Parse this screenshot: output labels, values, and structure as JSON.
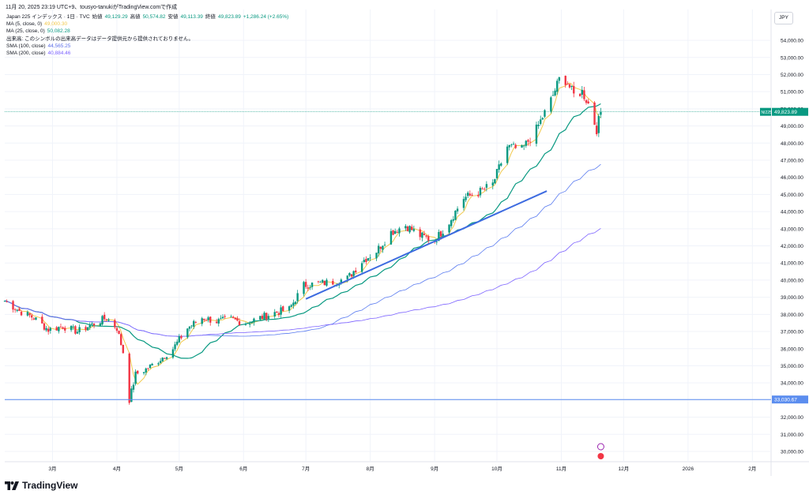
{
  "header": {
    "topline": "11月 20, 2025 23:19 UTC+9、tousyo-tanukiがTradingView.comで作成",
    "symbol": "Japan 225 インデックス · 1日 · TVC",
    "open_label": "始値",
    "open": "49,129.29",
    "high_label": "高値",
    "high": "50,574.82",
    "low_label": "安値",
    "low": "49,113.39",
    "close_label": "終値",
    "close": "49,823.89",
    "change": "+1,286.24 (+2.65%)"
  },
  "legend": [
    {
      "label": "MA (5, close, 0)",
      "value": "49,000.30",
      "color": "#f2c94c"
    },
    {
      "label": "MA (25, close, 0)",
      "value": "50,082.28",
      "color": "#089981"
    },
    {
      "label": "出来高: このシンボルの出来高データはデータ提供元から提供されておりません。",
      "value": "",
      "color": "#131722"
    },
    {
      "label": "SMA (100, close)",
      "value": "44,565.25",
      "color": "#5b6ee8"
    },
    {
      "label": "SMA (200, close)",
      "value": "40,884.46",
      "color": "#7b61ff"
    }
  ],
  "currency": "JPY",
  "brand": "TradingView",
  "colors": {
    "up": "#089981",
    "down": "#f23645",
    "ma5": "#f2c94c",
    "ma25": "#089981",
    "sma100": "#5b7cf0",
    "sma200": "#7b61ff",
    "trendline": "#3d6be0",
    "hline": "#5b8def",
    "price_tag": "#089981",
    "hline_tag": "#5b8def"
  },
  "chart_data": {
    "type": "candlestick",
    "y_axis": {
      "ylim": [
        29400,
        55800
      ],
      "ticks": [
        "54,000.00",
        "53,000.00",
        "52,000.00",
        "51,000.00",
        "50,000.00",
        "49,000.00",
        "48,000.00",
        "47,000.00",
        "46,000.00",
        "45,000.00",
        "44,000.00",
        "43,000.00",
        "42,000.00",
        "41,000.00",
        "40,000.00",
        "39,000.00",
        "38,000.00",
        "37,000.00",
        "36,000.00",
        "35,000.00",
        "34,000.00",
        "33,000.00",
        "32,000.00",
        "31,000.00",
        "30,000.00"
      ],
      "tick_values": [
        54000,
        53000,
        52000,
        51000,
        50000,
        49000,
        48000,
        47000,
        46000,
        45000,
        44000,
        43000,
        42000,
        41000,
        40000,
        39000,
        38000,
        37000,
        36000,
        35000,
        34000,
        33000,
        32000,
        31000,
        30000
      ]
    },
    "x_axis": {
      "ticks": [
        "3月",
        "4月",
        "5月",
        "6月",
        "7月",
        "8月",
        "9月",
        "10月",
        "11月",
        "12月",
        "2026",
        "2月"
      ],
      "tick_dates": [
        "2025-03-01",
        "2025-04-01",
        "2025-05-01",
        "2025-06-01",
        "2025-07-01",
        "2025-08-01",
        "2025-09-01",
        "2025-10-01",
        "2025-11-01",
        "2025-12-01",
        "2026-01-01",
        "2026-02-01"
      ],
      "xlim": [
        "2025-02-06",
        "2026-02-10"
      ]
    },
    "last_price": {
      "label": "NI225",
      "value": "49,823.89",
      "y": 49823.89
    },
    "horizontal_line": {
      "value": "33,030.67",
      "y": 33030.67
    },
    "trendline": {
      "x": [
        "2025-07-01",
        "2025-10-25"
      ],
      "y": [
        38900,
        45200
      ]
    },
    "closes_x": [
      "2025-02-06",
      "2025-02-13",
      "2025-02-20",
      "2025-02-27",
      "2025-03-06",
      "2025-03-13",
      "2025-03-20",
      "2025-03-27",
      "2025-04-01",
      "2025-04-04",
      "2025-04-07",
      "2025-04-10",
      "2025-04-15",
      "2025-04-21",
      "2025-04-28",
      "2025-05-05",
      "2025-05-12",
      "2025-05-19",
      "2025-05-26",
      "2025-06-02",
      "2025-06-09",
      "2025-06-16",
      "2025-06-23",
      "2025-06-30",
      "2025-07-07",
      "2025-07-14",
      "2025-07-21",
      "2025-07-28",
      "2025-08-04",
      "2025-08-11",
      "2025-08-18",
      "2025-08-25",
      "2025-09-01",
      "2025-09-08",
      "2025-09-15",
      "2025-09-22",
      "2025-09-29",
      "2025-10-06",
      "2025-10-13",
      "2025-10-20",
      "2025-10-27",
      "2025-11-01",
      "2025-11-04",
      "2025-11-07",
      "2025-11-11",
      "2025-11-14",
      "2025-11-18",
      "2025-11-20"
    ],
    "closes_y": [
      38800,
      38200,
      37800,
      37100,
      37300,
      37000,
      37400,
      37800,
      37200,
      35800,
      33000,
      34500,
      34800,
      35300,
      36000,
      37200,
      37800,
      37600,
      37700,
      37500,
      37800,
      38100,
      38300,
      39700,
      39800,
      39900,
      40100,
      41100,
      41700,
      42800,
      43200,
      42600,
      42300,
      43400,
      44800,
      45100,
      45600,
      47800,
      47600,
      48800,
      50500,
      52000,
      51500,
      50800,
      51000,
      50300,
      48800,
      49823
    ]
  }
}
